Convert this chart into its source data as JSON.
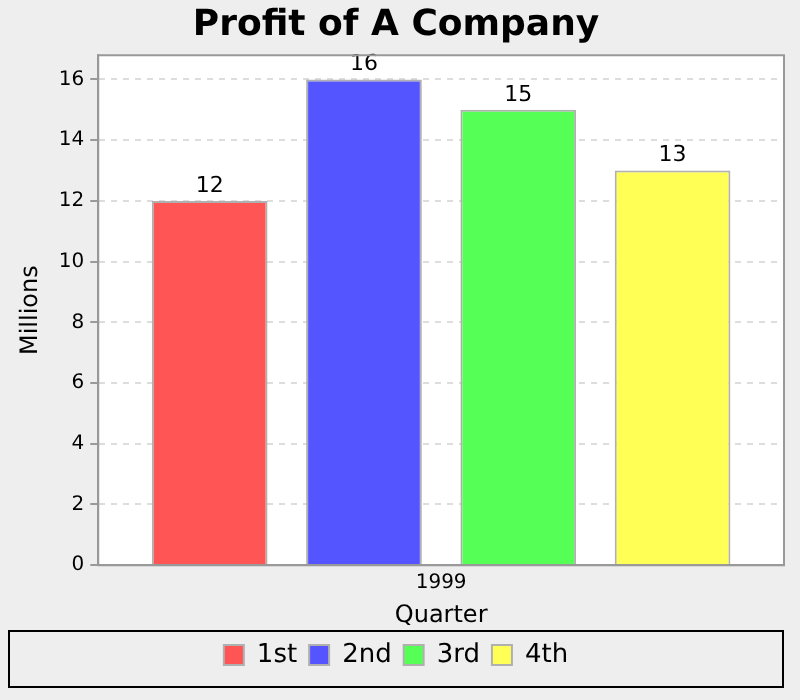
{
  "chart_data": {
    "type": "bar",
    "title": "Profit of A Company",
    "xlabel": "Quarter",
    "ylabel": "Millions",
    "categories": [
      "1999"
    ],
    "series": [
      {
        "name": "1st",
        "color": "#ff5555",
        "values": [
          12
        ]
      },
      {
        "name": "2nd",
        "color": "#5555ff",
        "values": [
          16
        ]
      },
      {
        "name": "3rd",
        "color": "#55ff55",
        "values": [
          15
        ]
      },
      {
        "name": "4th",
        "color": "#ffff55",
        "values": [
          13
        ]
      }
    ],
    "ylim": [
      0,
      16.8
    ],
    "yticks": [
      0,
      2,
      4,
      6,
      8,
      10,
      12,
      14,
      16
    ],
    "grid": "y",
    "legend": "bottom",
    "data_labels": true
  }
}
